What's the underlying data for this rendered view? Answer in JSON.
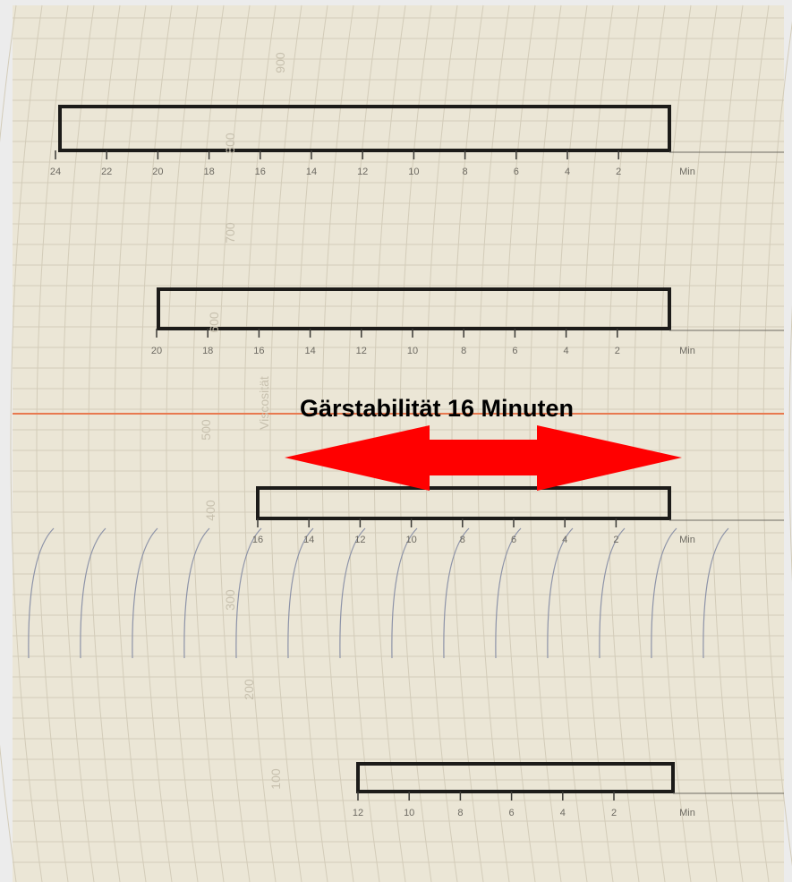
{
  "annotation": "Gärstabilität 16 Minuten",
  "scales": [
    {
      "ticks": [
        "24",
        "22",
        "20",
        "18",
        "16",
        "14",
        "12",
        "10",
        "8",
        "6",
        "4",
        "2"
      ],
      "unit": "Min"
    },
    {
      "ticks": [
        "20",
        "18",
        "16",
        "14",
        "12",
        "10",
        "8",
        "6",
        "4",
        "2"
      ],
      "unit": "Min"
    },
    {
      "ticks": [
        "16",
        "14",
        "12",
        "10",
        "8",
        "6",
        "4",
        "2"
      ],
      "unit": "Min"
    },
    {
      "ticks": [
        "12",
        "10",
        "8",
        "6",
        "4",
        "2"
      ],
      "unit": "Min"
    }
  ],
  "paper_labels": [
    "900",
    "800",
    "700",
    "600",
    "500",
    "400",
    "300",
    "200",
    "100"
  ],
  "paper_caption": "Viscosität"
}
